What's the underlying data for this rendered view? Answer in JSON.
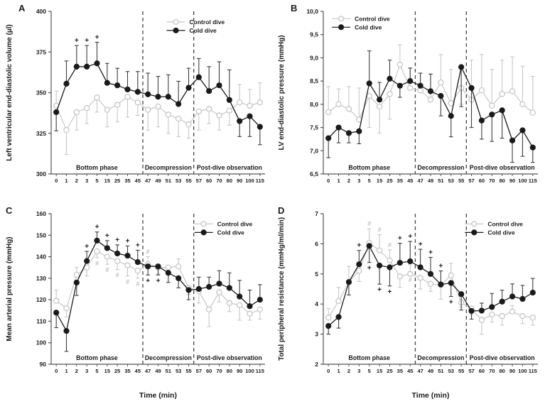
{
  "figure_title": "",
  "x_categories": [
    "0",
    "1",
    "2",
    "3",
    "5",
    "15",
    "25",
    "35",
    "45",
    "47",
    "49",
    "51",
    "53",
    "55",
    "57",
    "60",
    "70",
    "80",
    "90",
    "100",
    "115"
  ],
  "x_axis_label": "Time (min)",
  "legend": {
    "control_label": "Control dive",
    "cold_label": "Cold dive"
  },
  "phases": [
    {
      "label": "Bottom phase",
      "center_index": 4.0
    },
    {
      "label": "Decompression",
      "center_index": 11.0
    },
    {
      "label": "Post-dive observation",
      "center_index": 17.0
    }
  ],
  "divider_indices": [
    8.5,
    13.5
  ],
  "colors": {
    "control": "#c7c7c7",
    "cold": "#1a1a1a",
    "cold_errbar": "#3d3d3d",
    "marker_plus": "#1a1a1a",
    "marker_hash": "#bfbfbf",
    "axis": "#555555",
    "text": "#1a1a1a"
  },
  "chart_data": [
    {
      "id": "A",
      "panel_label": "A",
      "type": "line",
      "ylabel": "Left ventricular end-diastolic volume (µl)",
      "ylim": [
        300,
        400
      ],
      "ytick_values": [
        300,
        325,
        350,
        375,
        400
      ],
      "ytick_labels": [
        "300",
        "325",
        "350",
        "375",
        "400"
      ],
      "show_xlabel": false,
      "legend_pos": {
        "fx": 0.54,
        "fy": 0.03
      },
      "series": [
        {
          "key": "control",
          "name": "Control dive",
          "values": [
            342,
            327,
            338,
            340.5,
            347,
            339.5,
            342.5,
            347.5,
            344,
            339.5,
            341.5,
            336.5,
            334,
            330.5,
            338.5,
            340,
            336,
            339,
            344,
            342,
            344
          ],
          "err": [
            9,
            15,
            11,
            9.5,
            9,
            10.5,
            10.5,
            12.5,
            8,
            12.5,
            12.5,
            11.5,
            11,
            8.5,
            11.5,
            9,
            9,
            9,
            11,
            10,
            12
          ],
          "err_dir": [
            1,
            -1,
            -1,
            -1,
            -1,
            -1,
            -1,
            -1,
            -1,
            -1,
            -1,
            -1,
            -1,
            -1,
            -1,
            -1,
            -1,
            -1,
            1,
            1,
            1
          ]
        },
        {
          "key": "cold",
          "name": "Cold dive",
          "values": [
            338,
            355.5,
            366,
            366,
            368,
            356,
            354.5,
            352,
            350.5,
            349,
            347.5,
            347.5,
            343,
            353,
            359.5,
            351,
            354.5,
            345.5,
            332.5,
            335.5,
            329
          ],
          "err": [
            11.5,
            14,
            13,
            13,
            13,
            12,
            10.5,
            11,
            12.5,
            13,
            12.5,
            13.5,
            14,
            12,
            11.5,
            15,
            14.5,
            18.5,
            9.5,
            12.5,
            11
          ],
          "err_dir": [
            -1,
            1,
            1,
            1,
            1,
            1,
            1,
            1,
            1,
            1,
            1,
            1,
            1,
            1,
            1,
            1,
            1,
            1,
            -1,
            -1,
            -1
          ]
        }
      ],
      "sig_markers": [
        {
          "series": "cold",
          "index": 2,
          "pos": "above",
          "symbol": "+"
        },
        {
          "series": "cold",
          "index": 3,
          "pos": "above",
          "symbol": "+"
        },
        {
          "series": "cold",
          "index": 4,
          "pos": "above",
          "symbol": "+"
        }
      ]
    },
    {
      "id": "B",
      "panel_label": "B",
      "type": "line",
      "ylabel": "LV end-diastolic pressure (mmHg)",
      "ylim": [
        6.5,
        10.0
      ],
      "ytick_values": [
        6.5,
        7.0,
        7.5,
        8.0,
        8.5,
        9.0,
        9.5,
        10.0
      ],
      "ytick_labels": [
        "6,5",
        "7,0",
        "7,5",
        "8,0",
        "8,5",
        "9,0",
        "9,5",
        "10,0"
      ],
      "show_xlabel": false,
      "legend_pos": {
        "fx": 0.04,
        "fy": 0.01
      },
      "series": [
        {
          "key": "control",
          "name": "Control dive",
          "values": [
            7.83,
            8.0,
            7.9,
            7.67,
            8.18,
            7.95,
            8.22,
            8.85,
            8.35,
            8.3,
            8.1,
            8.47,
            8.02,
            8.35,
            8.1,
            8.3,
            7.97,
            8.22,
            8.28,
            8.0,
            7.82
          ],
          "err": [
            0.55,
            0.33,
            0.48,
            0.68,
            0.68,
            0.57,
            0.54,
            0.43,
            0.43,
            0.37,
            0.55,
            0.6,
            0.73,
            0.35,
            0.85,
            0.77,
            0.78,
            0.73,
            0.74,
            0.82,
            0.78
          ],
          "err_dir": [
            1,
            1,
            1,
            1,
            -1,
            -1,
            -1,
            1,
            1,
            1,
            1,
            1,
            1,
            -1,
            1,
            1,
            1,
            1,
            1,
            1,
            1
          ]
        },
        {
          "key": "cold",
          "name": "Cold dive",
          "values": [
            7.27,
            7.5,
            7.38,
            7.42,
            8.45,
            8.1,
            8.55,
            8.4,
            8.5,
            8.4,
            8.28,
            8.18,
            7.75,
            8.8,
            8.35,
            7.65,
            7.78,
            7.87,
            7.22,
            7.44,
            7.07
          ],
          "err": [
            0.42,
            0.33,
            0.21,
            0.27,
            0.7,
            0.37,
            0.4,
            0.25,
            0.28,
            0.27,
            0.37,
            0.43,
            0.45,
            0.85,
            0.85,
            0.4,
            0.58,
            0.6,
            0.47,
            0.56,
            0.32
          ],
          "err_dir": [
            -1,
            -1,
            -1,
            -1,
            1,
            1,
            1,
            -1,
            1,
            1,
            1,
            -1,
            -1,
            -1,
            -1,
            -1,
            -1,
            -1,
            -1,
            -1,
            -1
          ]
        }
      ],
      "sig_markers": []
    },
    {
      "id": "C",
      "panel_label": "C",
      "type": "line",
      "ylabel": "Mean arterial pressure (mmHg)",
      "ylim": [
        90,
        160
      ],
      "ytick_values": [
        90,
        100,
        110,
        120,
        130,
        140,
        150,
        160
      ],
      "ytick_labels": [
        "90",
        "100",
        "110",
        "120",
        "130",
        "140",
        "150",
        "160"
      ],
      "show_xlabel": true,
      "legend_pos": {
        "fx": 0.67,
        "fy": 0.03
      },
      "series": [
        {
          "key": "control",
          "name": "Control dive",
          "values": [
            119.5,
            116,
            131.5,
            135,
            142.5,
            140,
            138,
            136,
            133.5,
            136.5,
            135,
            135,
            135.5,
            125.5,
            124,
            115.5,
            123.5,
            118.5,
            117.5,
            113.5,
            115.5
          ],
          "err": [
            5,
            4,
            3.5,
            4,
            3,
            3.5,
            4,
            5,
            3.5,
            3.5,
            3,
            3,
            3.5,
            3,
            5.5,
            8,
            4.5,
            4,
            7,
            3,
            4.5
          ],
          "err_dir": [
            1,
            -1,
            1,
            -1,
            -1,
            -1,
            -1,
            -1,
            -1,
            1,
            -1,
            -1,
            1,
            -1,
            -1,
            -1,
            -1,
            -1,
            -1,
            -1,
            -1
          ]
        },
        {
          "key": "cold",
          "name": "Cold dive",
          "values": [
            114,
            105.5,
            128,
            138,
            147.5,
            144,
            141.5,
            140.5,
            137.5,
            135.5,
            135.5,
            132.5,
            130,
            124.5,
            125,
            126,
            127.5,
            125.5,
            121.5,
            117,
            120
          ],
          "err": [
            7,
            9.5,
            6,
            4.5,
            4,
            3.5,
            4,
            4.5,
            5.5,
            4,
            4,
            4.5,
            4.5,
            4.5,
            5.5,
            4.5,
            6,
            7,
            7.5,
            7.5,
            7
          ],
          "err_dir": [
            -1,
            -1,
            -1,
            1,
            1,
            1,
            1,
            1,
            1,
            -1,
            -1,
            -1,
            -1,
            -1,
            1,
            1,
            1,
            1,
            1,
            1,
            1
          ]
        }
      ],
      "sig_markers": [
        {
          "series": "cold",
          "index": 3,
          "pos": "above",
          "symbol": "+"
        },
        {
          "series": "cold",
          "index": 4,
          "pos": "above",
          "symbol": "+"
        },
        {
          "series": "cold",
          "index": 5,
          "pos": "above",
          "symbol": "+"
        },
        {
          "series": "cold",
          "index": 6,
          "pos": "above",
          "symbol": "+"
        },
        {
          "series": "cold",
          "index": 7,
          "pos": "above",
          "symbol": "+"
        },
        {
          "series": "cold",
          "index": 8,
          "pos": "above",
          "symbol": "+"
        },
        {
          "series": "cold",
          "index": 9,
          "pos": "below",
          "symbol": "+"
        },
        {
          "series": "cold",
          "index": 10,
          "pos": "below",
          "symbol": "+"
        },
        {
          "series": "control",
          "index": 4,
          "pos": "below",
          "symbol": "#"
        },
        {
          "series": "control",
          "index": 5,
          "pos": "below",
          "symbol": "#"
        },
        {
          "series": "control",
          "index": 6,
          "pos": "below",
          "symbol": "#"
        },
        {
          "series": "control",
          "index": 7,
          "pos": "below",
          "symbol": "#"
        },
        {
          "series": "control",
          "index": 8,
          "pos": "below",
          "symbol": "#"
        },
        {
          "series": "control",
          "index": 9,
          "pos": "above",
          "symbol": "#"
        }
      ]
    },
    {
      "id": "D",
      "panel_label": "D",
      "type": "line",
      "ylabel": "Total peripheral resistance (mmHg/ml/min)",
      "ylim": [
        2,
        7
      ],
      "ytick_values": [
        2,
        3,
        4,
        5,
        6,
        7
      ],
      "ytick_labels": [
        "2",
        "3",
        "4",
        "5",
        "6",
        "7"
      ],
      "show_xlabel": true,
      "legend_pos": {
        "fx": 0.66,
        "fy": 0.03
      },
      "series": [
        {
          "key": "control",
          "name": "Control dive",
          "values": [
            3.55,
            4.1,
            4.73,
            5.1,
            6.03,
            5.78,
            5.45,
            4.92,
            5.0,
            4.87,
            4.67,
            4.63,
            4.95,
            4.05,
            3.85,
            3.47,
            3.65,
            3.6,
            3.75,
            3.6,
            3.55
          ],
          "err": [
            0.3,
            0.45,
            0.52,
            0.35,
            0.47,
            0.52,
            0.35,
            0.37,
            0.3,
            0.37,
            0.25,
            0.47,
            0.4,
            0.15,
            0.2,
            0.47,
            0.25,
            0.3,
            0.2,
            0.25,
            0.25
          ],
          "err_dir": [
            1,
            1,
            1,
            -1,
            1,
            1,
            1,
            -1,
            1,
            -1,
            -1,
            -1,
            1,
            -1,
            -1,
            -1,
            -1,
            -1,
            1,
            -1,
            -1
          ]
        },
        {
          "key": "cold",
          "name": "Cold dive",
          "values": [
            3.27,
            3.57,
            4.73,
            5.32,
            5.93,
            5.28,
            5.22,
            5.37,
            5.42,
            5.22,
            5.0,
            4.65,
            4.7,
            4.33,
            3.77,
            3.78,
            3.9,
            4.08,
            4.25,
            4.17,
            4.38
          ],
          "err": [
            0.27,
            0.37,
            0.43,
            0.46,
            0.55,
            0.62,
            0.62,
            0.65,
            0.66,
            0.6,
            0.55,
            0.45,
            0.45,
            0.53,
            0.27,
            0.25,
            0.45,
            0.38,
            0.42,
            0.45,
            0.47
          ],
          "err_dir": [
            -1,
            -1,
            -1,
            1,
            -1,
            -1,
            -1,
            1,
            1,
            1,
            1,
            1,
            -1,
            -1,
            -1,
            1,
            1,
            1,
            1,
            1,
            1
          ]
        }
      ],
      "sig_markers": [
        {
          "series": "cold",
          "index": 3,
          "pos": "above",
          "symbol": "+"
        },
        {
          "series": "cold",
          "index": 4,
          "pos": "below",
          "symbol": "+"
        },
        {
          "series": "cold",
          "index": 5,
          "pos": "below",
          "symbol": "+"
        },
        {
          "series": "cold",
          "index": 6,
          "pos": "below",
          "symbol": "+"
        },
        {
          "series": "cold",
          "index": 7,
          "pos": "above",
          "symbol": "+"
        },
        {
          "series": "cold",
          "index": 8,
          "pos": "above",
          "symbol": "+"
        },
        {
          "series": "cold",
          "index": 9,
          "pos": "above",
          "symbol": "+"
        },
        {
          "series": "cold",
          "index": 10,
          "pos": "above",
          "symbol": "+"
        },
        {
          "series": "cold",
          "index": 11,
          "pos": "above",
          "symbol": "+"
        },
        {
          "series": "cold",
          "index": 12,
          "pos": "below",
          "symbol": "+"
        },
        {
          "series": "control",
          "index": 4,
          "pos": "above",
          "symbol": "#"
        },
        {
          "series": "control",
          "index": 5,
          "pos": "above",
          "symbol": "#"
        },
        {
          "series": "control",
          "index": 6,
          "pos": "above",
          "symbol": "#"
        },
        {
          "series": "control",
          "index": 8,
          "pos": "below",
          "symbol": "#"
        }
      ]
    }
  ]
}
